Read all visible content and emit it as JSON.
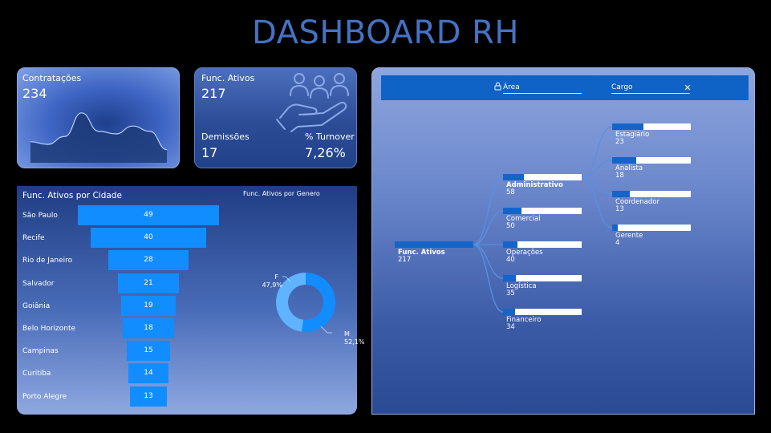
{
  "title": "DASHBOARD RH",
  "contratacoes": {
    "label": "Contratações",
    "value": "234"
  },
  "func_ativos": {
    "label": "Func. Ativos",
    "value": "217"
  },
  "demissoes": {
    "label": "Demissões",
    "value": "17"
  },
  "turnover": {
    "label": "% Turnover",
    "value": "7,26%"
  },
  "icons": {
    "team": "people-hand-icon",
    "lock": "lock-icon",
    "clear": "close-icon"
  },
  "colors": {
    "accent": "#118dff",
    "title": "#4472c4",
    "tree_fill": "#1565c8"
  },
  "city_chart_title": "Func. Ativos por Cidade",
  "gender_chart_title": "Func. Ativos por Genero",
  "slicers": {
    "area": "Área",
    "cargo": "Cargo"
  },
  "chart_data": [
    {
      "type": "area",
      "series": [
        {
          "values": [
            8,
            7,
            10,
            19,
            12,
            11,
            14,
            12,
            5
          ]
        }
      ]
    },
    {
      "type": "bar",
      "categories": [
        "São Paulo",
        "Recife",
        "Rio de Janeiro",
        "Salvador",
        "Goiânia",
        "Belo Horizonte",
        "Campinas",
        "Curitiba",
        "Porto Alegre"
      ],
      "values": [
        49,
        40,
        28,
        21,
        19,
        18,
        15,
        14,
        13
      ],
      "title": "Func. Ativos por Cidade"
    },
    {
      "type": "pie",
      "categories": [
        "M",
        "F"
      ],
      "values": [
        52.1,
        47.9
      ],
      "labels": [
        "52,1%",
        "47,9%"
      ],
      "colors": [
        "#118dff",
        "#5fb3ff"
      ],
      "title": "Func. Ativos por Genero"
    },
    {
      "type": "bar",
      "root": {
        "label": "Func. Ativos",
        "value": "217"
      },
      "areas": [
        {
          "label": "Administrativo",
          "value": "58"
        },
        {
          "label": "Comercial",
          "value": "50"
        },
        {
          "label": "Operações",
          "value": "40"
        },
        {
          "label": "Logística",
          "value": "35"
        },
        {
          "label": "Financeiro",
          "value": "34"
        }
      ],
      "cargos": [
        {
          "label": "Estagiário",
          "value": "23"
        },
        {
          "label": "Analista",
          "value": "18"
        },
        {
          "label": "Coordenador",
          "value": "13"
        },
        {
          "label": "Gerente",
          "value": "4"
        }
      ]
    }
  ]
}
